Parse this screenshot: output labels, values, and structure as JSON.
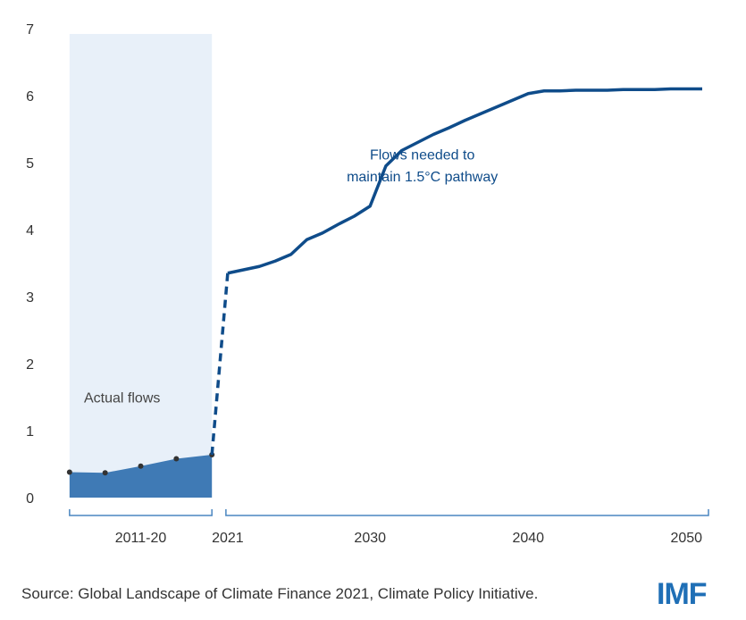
{
  "chart_data": {
    "type": "line",
    "ylim": [
      0,
      7
    ],
    "yticks": [
      "0",
      "1",
      "2",
      "3",
      "4",
      "5",
      "6",
      "7"
    ],
    "xlim": [
      2010.5,
      2051
    ],
    "xtick_labels": [
      {
        "label": "2011-20",
        "x": 2015.5
      },
      {
        "label": "2021",
        "x": 2021
      },
      {
        "label": "2030",
        "x": 2030
      },
      {
        "label": "2040",
        "x": 2040
      },
      {
        "label": "2050",
        "x": 2050
      }
    ],
    "actual_period": [
      2011,
      2020
    ],
    "actual_flows": {
      "x": [
        2011,
        2013.25,
        2015.5,
        2017.75,
        2020
      ],
      "values": [
        0.38,
        0.37,
        0.47,
        0.58,
        0.64
      ],
      "label": "Actual flows",
      "color": "#3f7ab5",
      "shade_color": "#e8f0f9"
    },
    "connector": {
      "x": [
        2020,
        2021
      ],
      "values": [
        0.64,
        3.35
      ],
      "style": "dashed"
    },
    "needed_flows": {
      "x": [
        2021,
        2022,
        2023,
        2024,
        2025,
        2026,
        2027,
        2028,
        2029,
        2030,
        2031,
        2032,
        2033,
        2034,
        2035,
        2036,
        2037,
        2038,
        2039,
        2040,
        2041,
        2042,
        2043,
        2044,
        2045,
        2046,
        2047,
        2048,
        2049,
        2050,
        2051
      ],
      "values": [
        3.35,
        3.4,
        3.45,
        3.53,
        3.63,
        3.85,
        3.95,
        4.08,
        4.2,
        4.35,
        4.95,
        5.18,
        5.3,
        5.42,
        5.52,
        5.63,
        5.73,
        5.83,
        5.93,
        6.03,
        6.07,
        6.07,
        6.08,
        6.08,
        6.08,
        6.09,
        6.09,
        6.09,
        6.1,
        6.1,
        6.1
      ],
      "label_line1": "Flows needed to",
      "label_line2": "maintain 1.5°C pathway",
      "color": "#0f4c8a"
    },
    "bracket_color": "#4a86c0"
  },
  "source": "Source: Global Landscape of Climate Finance 2021, Climate Policy Initiative.",
  "logo": "IMF"
}
